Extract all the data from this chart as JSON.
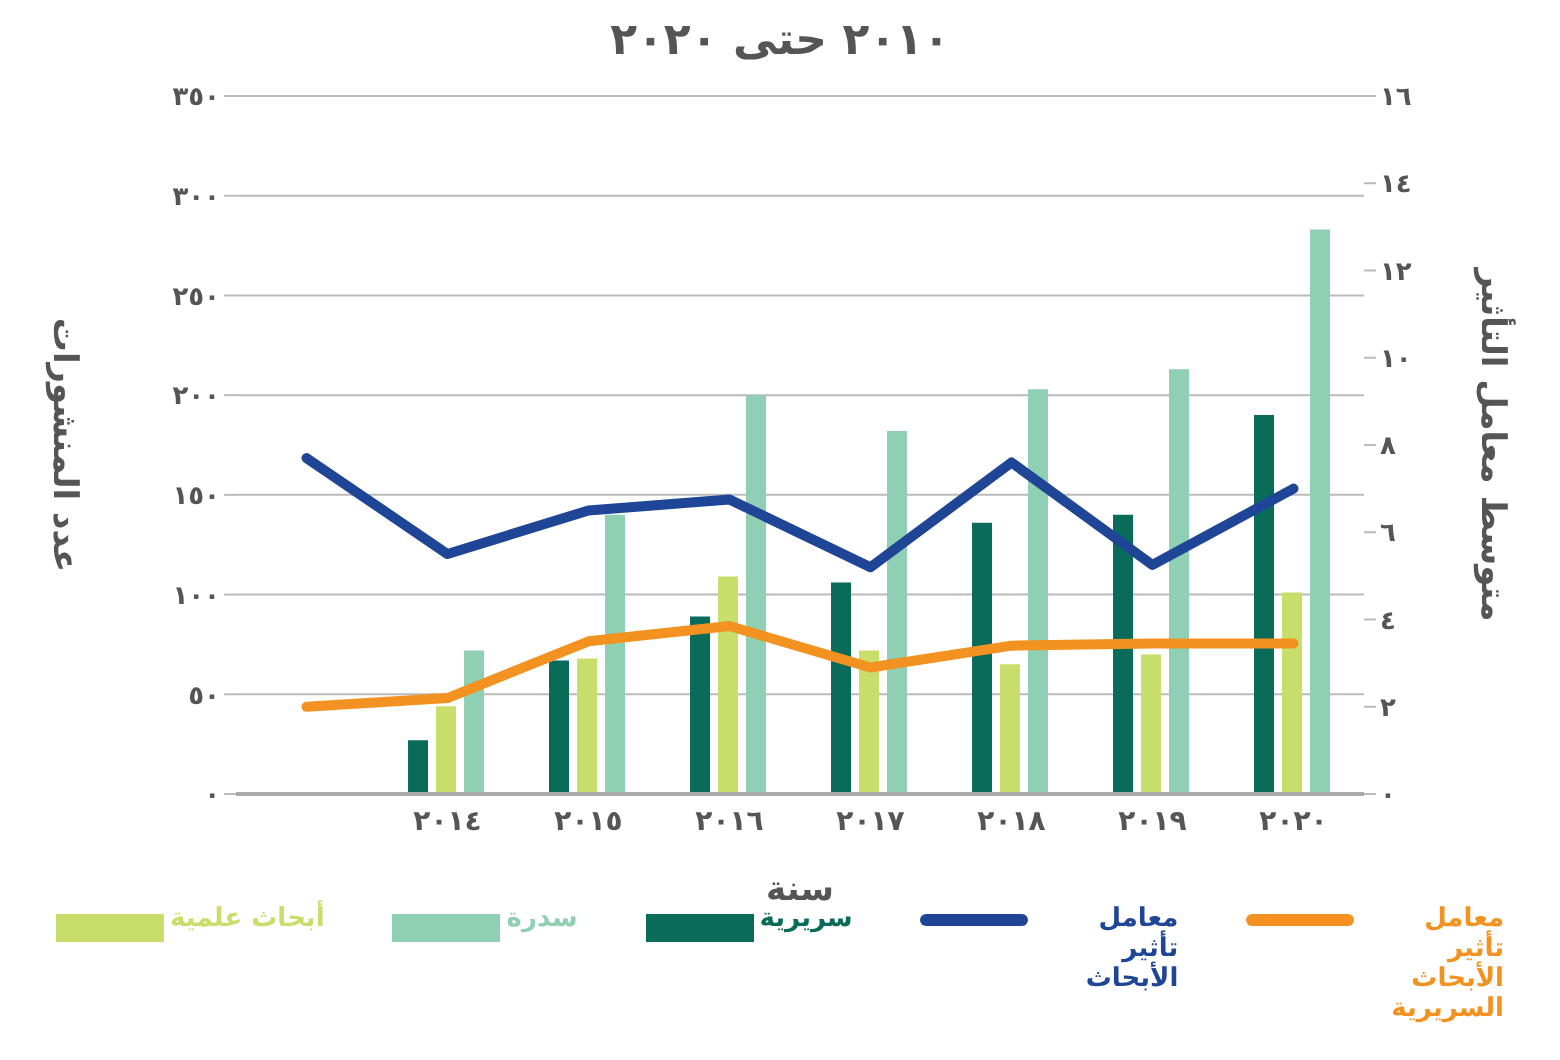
{
  "chart_data": {
    "type": "bar",
    "title": "٢٠١٠ حتى ٢٠٢٠",
    "xlabel": "سنة",
    "ylabel": "عدد المنشورات",
    "y2label": "متوسط معامل التأثير",
    "categories": [
      null,
      "٢٠١٤",
      "٢٠١٥",
      "٢٠١٦",
      "٢٠١٧",
      "٢٠١٨",
      "٢٠١٩",
      "٢٠٢٠"
    ],
    "series": [
      {
        "name": "سريرية",
        "color": "#0b6b5a",
        "values": [
          null,
          27,
          67,
          89,
          106,
          136,
          140,
          190
        ]
      },
      {
        "name": "أبحاث علمية",
        "color": "#c8de6a",
        "values": [
          null,
          44,
          68,
          109,
          72,
          65,
          70,
          101
        ]
      },
      {
        "name": "سدرة",
        "color": "#8fcfb4",
        "values": [
          null,
          72,
          140,
          200,
          182,
          203,
          213,
          283
        ]
      },
      {
        "name": "معامل تأثير الأبحاث السريرية",
        "type": "line",
        "axis": "y2",
        "color": "#f39220",
        "values": [
          2.0,
          2.2,
          3.5,
          3.85,
          2.9,
          3.4,
          3.45,
          3.45
        ]
      },
      {
        "name": "معامل تأثير الأبحاث",
        "type": "line",
        "axis": "y2",
        "color": "#1f4596",
        "values": [
          7.7,
          5.5,
          6.5,
          6.75,
          5.2,
          7.6,
          5.25,
          7.0
        ]
      }
    ],
    "ylim": [
      0,
      350
    ],
    "yticks": [
      {
        "value": 0,
        "label": "٠"
      },
      {
        "value": 50,
        "label": "٥٠"
      },
      {
        "value": 100,
        "label": "١٠٠"
      },
      {
        "value": 150,
        "label": "١٥٠"
      },
      {
        "value": 200,
        "label": "٢٠٠"
      },
      {
        "value": 250,
        "label": "٢٥٠"
      },
      {
        "value": 300,
        "label": "٣٠٠"
      },
      {
        "value": 350,
        "label": "٣٥٠"
      }
    ],
    "y2lim": [
      0,
      16
    ],
    "y2ticks": [
      {
        "value": 0,
        "label": "٠"
      },
      {
        "value": 2,
        "label": "٢"
      },
      {
        "value": 4,
        "label": "٤"
      },
      {
        "value": 6,
        "label": "٦"
      },
      {
        "value": 8,
        "label": "٨"
      },
      {
        "value": 10,
        "label": "١٠"
      },
      {
        "value": 12,
        "label": "١٢"
      },
      {
        "value": 14,
        "label": "١٤"
      },
      {
        "value": 16,
        "label": "١٦"
      }
    ],
    "grid": "y",
    "legend": "bottom"
  }
}
